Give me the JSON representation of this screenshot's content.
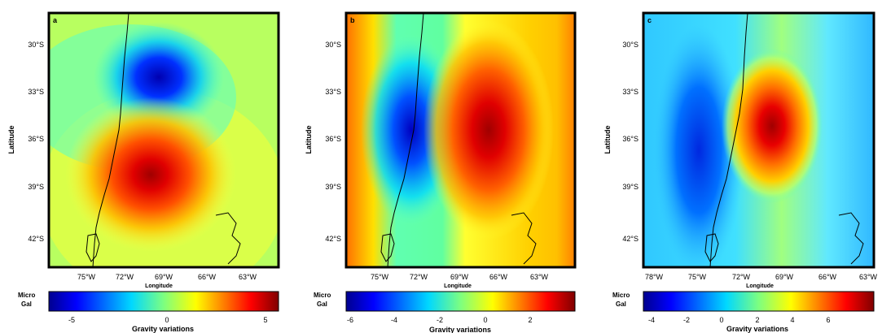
{
  "panels": [
    {
      "label": "a",
      "lat_ticks": [
        "30°S",
        "33°S",
        "36°S",
        "39°S",
        "42°S"
      ],
      "lon_ticks": [
        "75°W",
        "72°W",
        "69°W",
        "66°W",
        "63°W"
      ],
      "ylabel": "Latitude",
      "xlabel": "Longitude",
      "colorbar": {
        "unit_line1": "Micro",
        "unit_line2": "Gal",
        "ticks": [
          "-5",
          "0",
          "5"
        ],
        "title": "Gravity variations"
      }
    },
    {
      "label": "b",
      "lat_ticks": [
        "30°S",
        "33°S",
        "36°S",
        "39°S",
        "42°S"
      ],
      "lon_ticks": [
        "75°W",
        "72°W",
        "69°W",
        "66°W",
        "63°W"
      ],
      "ylabel": "Latitude",
      "xlabel": "Longitude",
      "colorbar": {
        "unit_line1": "Micro",
        "unit_line2": "Gal",
        "ticks": [
          "-6",
          "-4",
          "-2",
          "0",
          "2"
        ],
        "title": "Gravity variations"
      }
    },
    {
      "label": "c",
      "lat_ticks": [
        "30°S",
        "33°S",
        "36°S",
        "39°S",
        "42°S"
      ],
      "lon_ticks": [
        "78°W",
        "75°W",
        "72°W",
        "69°W",
        "66°W",
        "63°W"
      ],
      "ylabel": "Latitude",
      "xlabel": "Longitude",
      "colorbar": {
        "unit_line1": "Micro",
        "unit_line2": "Gal",
        "ticks": [
          "-4",
          "-2",
          "0",
          "2",
          "4",
          "6"
        ],
        "title": "Gravity variations"
      }
    }
  ],
  "colormap": [
    "#00008f",
    "#0000ff",
    "#00b0ff",
    "#40ffc0",
    "#ffff00",
    "#ff8000",
    "#ff0000",
    "#800000"
  ]
}
